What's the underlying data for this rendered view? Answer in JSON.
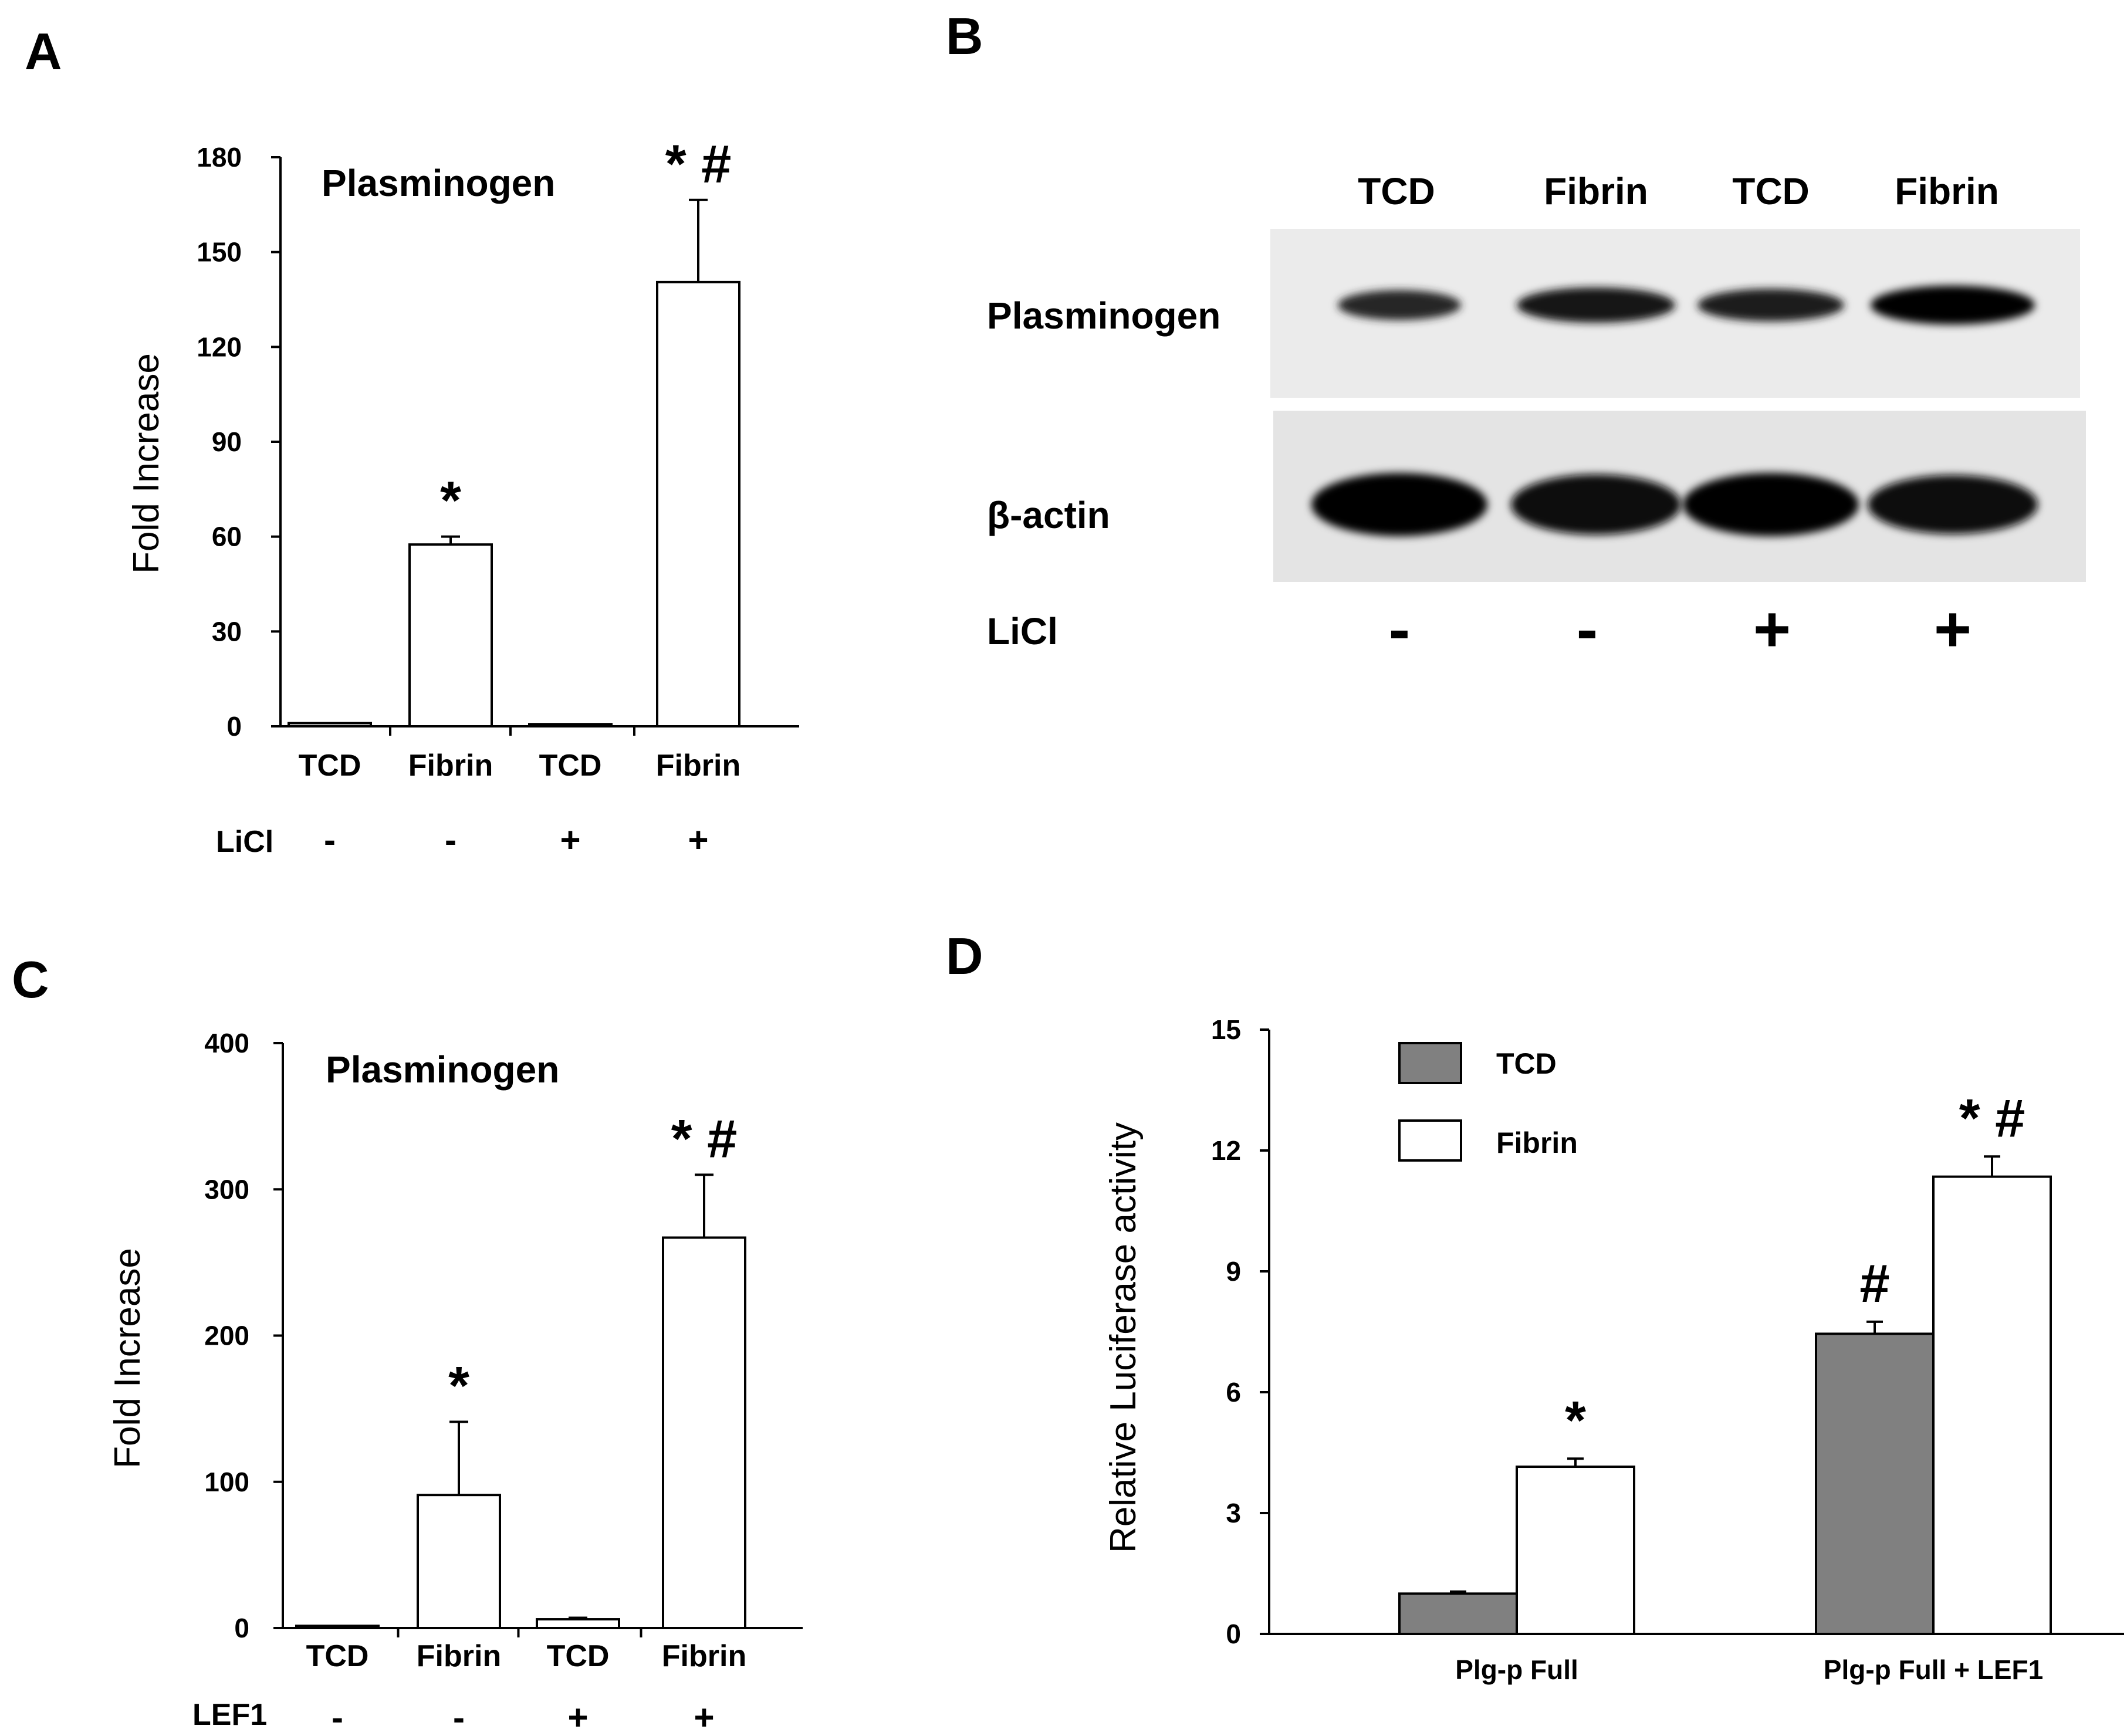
{
  "panels": [
    {
      "id": "A",
      "label": "A"
    },
    {
      "id": "B",
      "label": "B"
    },
    {
      "id": "C",
      "label": "C"
    },
    {
      "id": "D",
      "label": "D"
    }
  ],
  "chart_data": [
    {
      "panel": "A",
      "type": "bar",
      "title": "Plasminogen",
      "ylabel": "Fold Increase",
      "ylim": [
        0,
        180
      ],
      "yticks": [
        0,
        30,
        60,
        90,
        120,
        150,
        180
      ],
      "categories": [
        "TCD",
        "Fibrin",
        "TCD",
        "Fibrin"
      ],
      "values": [
        1,
        57.5,
        0.7,
        140.5
      ],
      "errors": [
        0.2,
        2.5,
        0.2,
        26
      ],
      "bar_color": "#ffffff",
      "significance": [
        "",
        "*",
        "",
        "* #"
      ],
      "condition_label": "LiCl",
      "condition_values": [
        "-",
        "-",
        "+",
        "+"
      ],
      "grid": false,
      "legend": "none"
    },
    {
      "panel": "C",
      "type": "bar",
      "title": "Plasminogen",
      "ylabel": "Fold Increase",
      "ylim": [
        0,
        400
      ],
      "yticks": [
        0,
        100,
        200,
        300,
        400
      ],
      "categories": [
        "TCD",
        "Fibrin",
        "TCD",
        "Fibrin"
      ],
      "values": [
        1.5,
        91,
        6,
        267
      ],
      "errors": [
        0.5,
        50,
        1,
        43
      ],
      "bar_color": "#ffffff",
      "significance": [
        "",
        "*",
        "",
        "* #"
      ],
      "condition_label": "LEF1",
      "condition_values": [
        "-",
        "-",
        "+",
        "+"
      ],
      "grid": false,
      "legend": "none"
    },
    {
      "panel": "D",
      "type": "bar",
      "title": "",
      "ylabel": "Relative Luciferase activity",
      "ylim": [
        0,
        15
      ],
      "yticks": [
        0,
        3,
        6,
        9,
        12,
        15
      ],
      "categories": [
        "Plg-p Full",
        "Plg-p Full + LEF1"
      ],
      "series": [
        {
          "name": "TCD",
          "color": "#808080",
          "values": [
            1,
            7.45
          ],
          "errors": [
            0.05,
            0.3
          ],
          "significance": [
            "",
            "#"
          ]
        },
        {
          "name": "Fibrin",
          "color": "#ffffff",
          "values": [
            4.15,
            11.35
          ],
          "errors": [
            0.2,
            0.5
          ],
          "significance": [
            "*",
            "* #"
          ]
        }
      ],
      "grid": false,
      "legend": "top-left"
    }
  ],
  "blot": {
    "panel": "B",
    "lane_labels": [
      "TCD",
      "Fibrin",
      "TCD",
      "Fibrin"
    ],
    "rows": [
      {
        "label": "Plasminogen",
        "band_intensity": [
          0.45,
          0.75,
          0.6,
          0.95
        ]
      },
      {
        "label": "β-actin",
        "band_intensity": [
          1.0,
          0.9,
          1.0,
          0.85
        ]
      }
    ],
    "condition_label": "LiCl",
    "condition_values": [
      "-",
      "-",
      "+",
      "+"
    ]
  }
}
